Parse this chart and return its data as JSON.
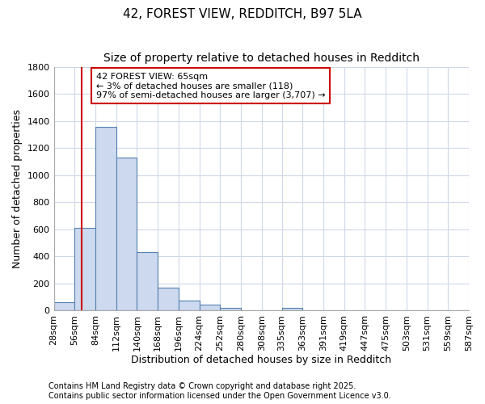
{
  "title": "42, FOREST VIEW, REDDITCH, B97 5LA",
  "subtitle": "Size of property relative to detached houses in Redditch",
  "xlabel": "Distribution of detached houses by size in Redditch",
  "ylabel": "Number of detached properties",
  "bin_edges": [
    28,
    56,
    84,
    112,
    140,
    168,
    196,
    224,
    252,
    280,
    308,
    335,
    363,
    391,
    419,
    447,
    475,
    503,
    531,
    559,
    587
  ],
  "bin_labels": [
    "28sqm",
    "56sqm",
    "84sqm",
    "112sqm",
    "140sqm",
    "168sqm",
    "196sqm",
    "224sqm",
    "252sqm",
    "280sqm",
    "308sqm",
    "335sqm",
    "363sqm",
    "391sqm",
    "419sqm",
    "447sqm",
    "475sqm",
    "503sqm",
    "531sqm",
    "559sqm",
    "587sqm"
  ],
  "counts": [
    60,
    610,
    1360,
    1130,
    430,
    170,
    70,
    40,
    15,
    0,
    0,
    15,
    0,
    0,
    0,
    0,
    0,
    0,
    0,
    0
  ],
  "bar_color": "#ccd9ee",
  "bar_edge_color": "#5580b0",
  "bg_color": "#ffffff",
  "grid_color": "#d0d8e8",
  "vline_x": 65,
  "vline_color": "#cc0000",
  "annotation_text": "42 FOREST VIEW: 65sqm\n← 3% of detached houses are smaller (118)\n97% of semi-detached houses are larger (3,707) →",
  "annotation_box_color": "#ffffff",
  "annotation_box_edge": "#cc0000",
  "ylim": [
    0,
    1800
  ],
  "yticks": [
    0,
    200,
    400,
    600,
    800,
    1000,
    1200,
    1400,
    1600,
    1800
  ],
  "footnote": "Contains HM Land Registry data © Crown copyright and database right 2025.\nContains public sector information licensed under the Open Government Licence v3.0.",
  "title_fontsize": 11,
  "subtitle_fontsize": 10,
  "label_fontsize": 9,
  "tick_fontsize": 8,
  "annotation_fontsize": 8,
  "footnote_fontsize": 7
}
